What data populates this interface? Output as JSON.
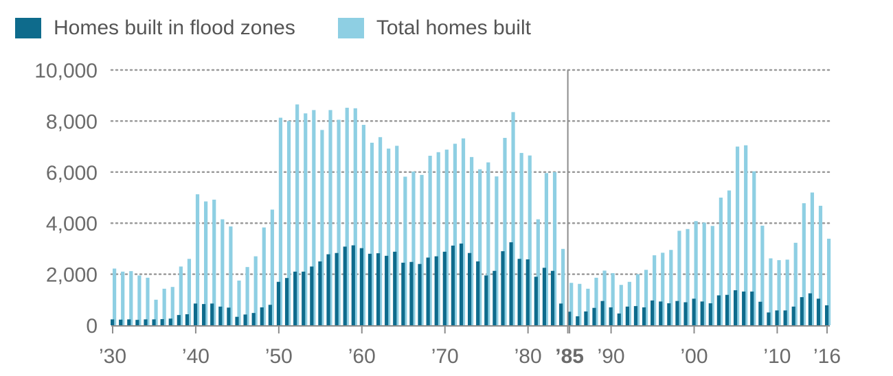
{
  "chart_data": {
    "type": "bar",
    "series": [
      {
        "name": "Homes built in flood zones",
        "color": "#0e6b8c",
        "values": [
          230,
          220,
          230,
          210,
          230,
          230,
          240,
          260,
          400,
          430,
          850,
          830,
          850,
          730,
          690,
          330,
          420,
          480,
          700,
          800,
          1700,
          1850,
          2100,
          2100,
          2300,
          2500,
          2780,
          2830,
          3080,
          3130,
          3020,
          2800,
          2820,
          2720,
          2880,
          2450,
          2480,
          2400,
          2650,
          2700,
          2880,
          3120,
          3200,
          2830,
          2500,
          1950,
          2130,
          2900,
          3250,
          2600,
          2580,
          1900,
          2250,
          2130,
          850,
          530,
          350,
          540,
          680,
          950,
          700,
          460,
          730,
          750,
          700,
          970,
          930,
          860,
          950,
          900,
          1040,
          930,
          860,
          1170,
          1190,
          1370,
          1320,
          1320,
          920,
          500,
          580,
          580,
          730,
          1100,
          1250,
          1040,
          780
        ]
      },
      {
        "name": "Total homes built",
        "color": "#8ecfe3",
        "values": [
          2220,
          2100,
          2120,
          1950,
          1860,
          1000,
          1430,
          1500,
          2300,
          2600,
          5130,
          4850,
          4920,
          4150,
          3870,
          1750,
          2280,
          2700,
          3830,
          4530,
          8130,
          8000,
          8650,
          8300,
          8430,
          7650,
          8430,
          8050,
          8520,
          8500,
          7850,
          7150,
          7370,
          6920,
          7030,
          5820,
          6020,
          5890,
          6640,
          6780,
          6880,
          7110,
          7320,
          6590,
          6110,
          6380,
          5830,
          7340,
          8350,
          6750,
          6650,
          4150,
          5960,
          6000,
          2990,
          1660,
          1620,
          1430,
          1860,
          2140,
          2040,
          1580,
          1700,
          2000,
          2170,
          2740,
          2840,
          2950,
          3700,
          3770,
          4080,
          4020,
          3890,
          5000,
          5280,
          7000,
          7050,
          6030,
          3900,
          2620,
          2550,
          2570,
          3230,
          4780,
          5200,
          4680,
          3390
        ]
      }
    ],
    "x": {
      "start_year": 1930,
      "end_year": 2016,
      "tick_years": [
        1930,
        1940,
        1950,
        1960,
        1970,
        1980,
        1985,
        1990,
        2000,
        2010,
        2016
      ],
      "tick_labels": [
        "’30",
        "’40",
        "’50",
        "’60",
        "’70",
        "’80",
        "’85",
        "’90",
        "’00",
        "’10",
        "’16"
      ],
      "highlight_year": 1985
    },
    "y": {
      "ylim": [
        0,
        10000
      ],
      "ticks": [
        0,
        2000,
        4000,
        6000,
        8000,
        10000
      ],
      "tick_labels": [
        "0",
        "2,000",
        "4,000",
        "6,000",
        "8,000",
        "10,000"
      ]
    },
    "grid": true,
    "legend_placement": "top-left"
  }
}
